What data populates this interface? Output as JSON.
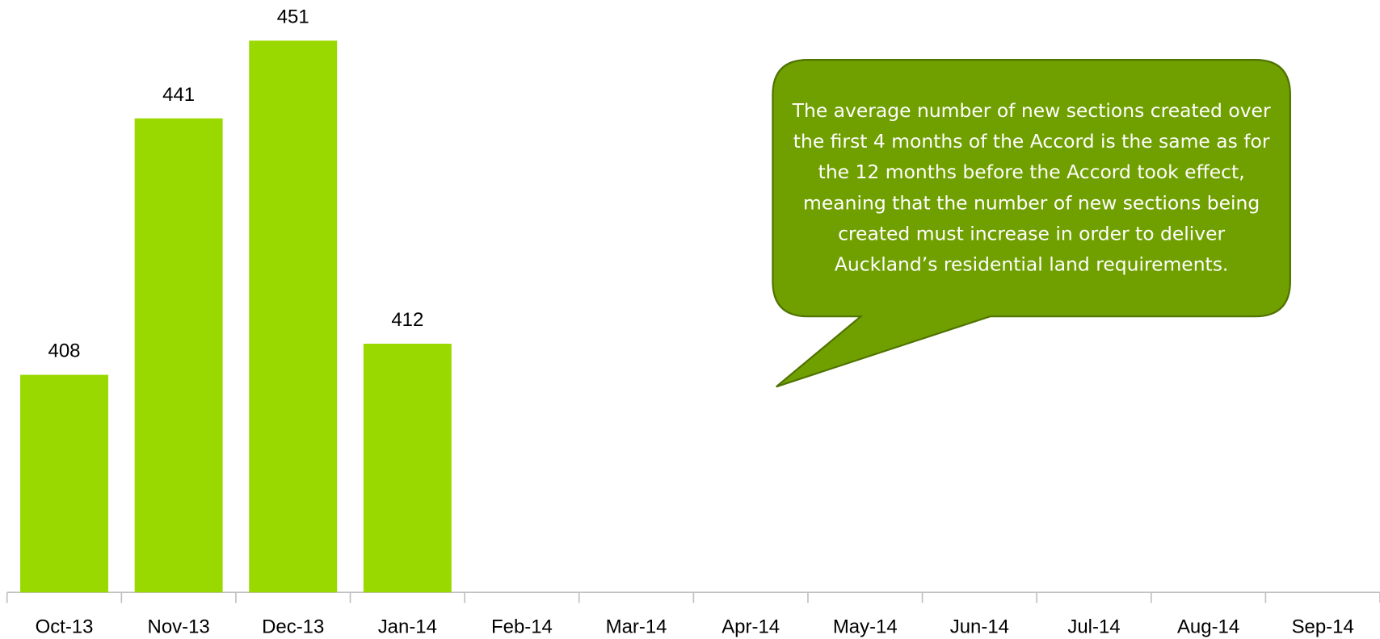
{
  "chart_data": {
    "type": "bar",
    "categories": [
      "Oct-13",
      "Nov-13",
      "Dec-13",
      "Jan-14",
      "Feb-14",
      "Mar-14",
      "Apr-14",
      "May-14",
      "Jun-14",
      "Jul-14",
      "Aug-14",
      "Sep-14"
    ],
    "values": [
      408,
      441,
      451,
      412,
      null,
      null,
      null,
      null,
      null,
      null,
      null,
      null
    ],
    "color": "#99d900",
    "ylim": [
      380,
      456
    ],
    "annotation": "The average number of new sections created over the first 4 months of the Accord is the same as for the 12 months before the Accord took effect, meaning that the number of new sections being created must increase in order to deliver Auckland’s residential land requirements.",
    "annotation_color": "#70a000"
  }
}
